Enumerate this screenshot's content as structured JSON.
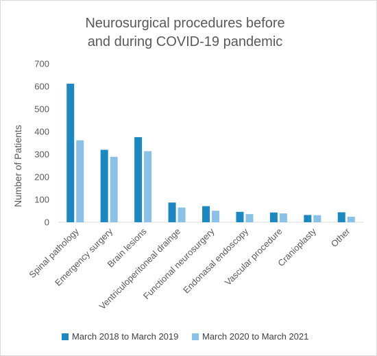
{
  "chart_data": {
    "type": "bar",
    "title": "Neurosurgical procedures before and during COVID-19 pandemic",
    "title_lines": [
      "Neurosurgical procedures before",
      "and during COVID-19 pandemic"
    ],
    "xlabel": "",
    "ylabel": "Number of Patients",
    "ylim": [
      0,
      700
    ],
    "yticks": [
      0,
      100,
      200,
      300,
      400,
      500,
      600,
      700
    ],
    "grid": false,
    "legend_position": "bottom",
    "categories": [
      "Spinal pathology",
      "Emergency surgery",
      "Brain lesions",
      "Ventriculoperitoneal drainge",
      "Functional neurosurgery",
      "Endonasal endoscopy",
      "Vascular procedure",
      "Cranioplasty",
      "Other"
    ],
    "series": [
      {
        "name": "March 2018 to March 2019",
        "color": "#1b88c2",
        "values": [
          612,
          320,
          376,
          87,
          71,
          46,
          43,
          32,
          44
        ]
      },
      {
        "name": "March 2020 to March 2021",
        "color": "#8ac1e6",
        "values": [
          362,
          289,
          314,
          65,
          51,
          36,
          39,
          31,
          24
        ]
      }
    ]
  }
}
